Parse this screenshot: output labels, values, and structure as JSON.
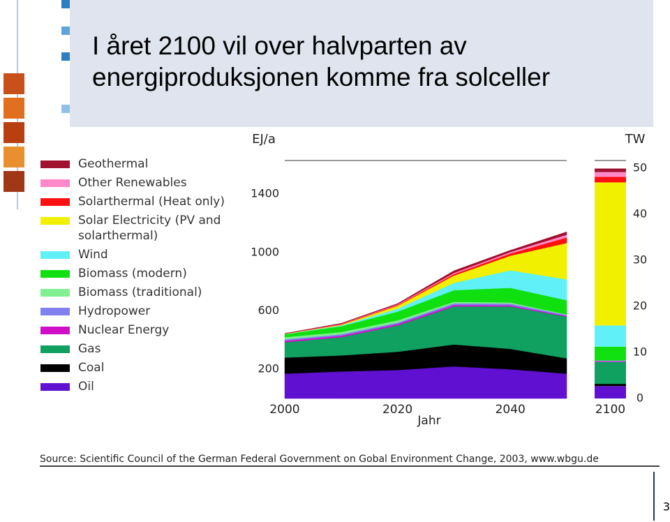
{
  "title": [
    "I året 2100 vil over halvparten av",
    "energiproduksjonen komme fra solceller"
  ],
  "chart_data": {
    "type": "stacked-area",
    "y_label": "EJ/a",
    "y2_label": "TW",
    "x_label": "Jahr",
    "x": [
      2000,
      2010,
      2020,
      2030,
      2040,
      2050,
      2100
    ],
    "xticks": [
      2000,
      2020,
      2040,
      2100
    ],
    "ylim": [
      0,
      1630
    ],
    "yticks": [
      200,
      600,
      1000,
      1400
    ],
    "y2lim": [
      0,
      51.7
    ],
    "y2ticks": [
      0,
      10,
      20,
      30,
      40,
      50
    ],
    "series": [
      {
        "name": "Geothermal",
        "color": "#a0102f",
        "values": [
          1,
          4,
          5,
          15,
          12,
          19,
          24
        ]
      },
      {
        "name": "Other Renewables",
        "color": "#ff88c8",
        "values": [
          1,
          3,
          5,
          8,
          10,
          19,
          33
        ]
      },
      {
        "name": "Solarthermal (Heat only)",
        "color": "#ff1010",
        "values": [
          1,
          3,
          5,
          10,
          15,
          38,
          38
        ]
      },
      {
        "name": "Solar Electricity (PV and solarthermal)",
        "color": "#f0f000",
        "values": [
          1,
          5,
          20,
          50,
          100,
          249,
          980
        ]
      },
      {
        "name": "Wind",
        "color": "#60f0f8",
        "values": [
          2,
          5,
          20,
          50,
          120,
          143,
          145
        ]
      },
      {
        "name": "Biomass (modern)",
        "color": "#10e010",
        "values": [
          20,
          40,
          60,
          80,
          100,
          97,
          95
        ]
      },
      {
        "name": "Biomass (traditional)",
        "color": "#80f090",
        "values": [
          15,
          15,
          15,
          10,
          8,
          3,
          0
        ]
      },
      {
        "name": "Hydropower",
        "color": "#8080f0",
        "values": [
          10,
          10,
          10,
          12,
          12,
          8,
          5
        ]
      },
      {
        "name": "Nuclear Energy",
        "color": "#d010c8",
        "values": [
          10,
          10,
          10,
          10,
          8,
          5,
          5
        ]
      },
      {
        "name": "Gas",
        "color": "#10a060",
        "values": [
          105,
          125,
          180,
          260,
          290,
          285,
          150
        ]
      },
      {
        "name": "Coal",
        "color": "#000000",
        "values": [
          110,
          110,
          125,
          150,
          140,
          105,
          15
        ]
      },
      {
        "name": "Oil",
        "color": "#6010d0",
        "values": [
          170,
          185,
          195,
          220,
          200,
          170,
          85
        ]
      }
    ]
  },
  "source": "Source: Scientific Council of the German Federal Government on Gobal Environment Change, 2003, www.wbgu.de",
  "page_number": "3"
}
